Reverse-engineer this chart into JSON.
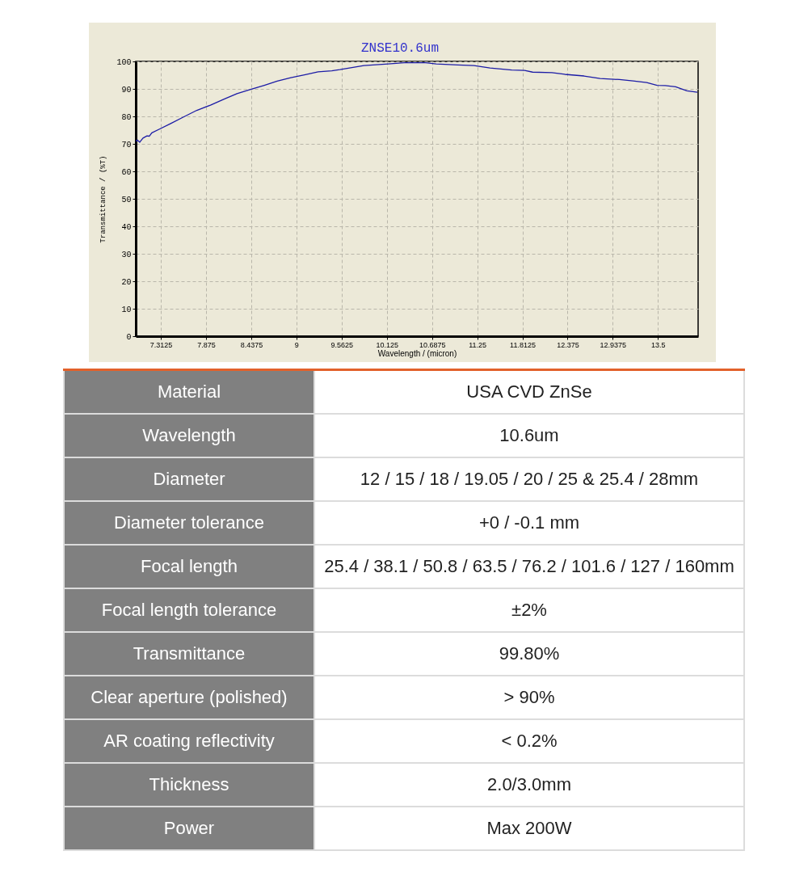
{
  "chart_data": [
    {
      "type": "line",
      "title": "ZNSE10.6um",
      "xlabel": "Wavelength / (micron)",
      "ylabel": "Transmittance / (%T)",
      "x": [
        7.0,
        7.02,
        7.05,
        7.09,
        7.14,
        7.17,
        7.2,
        7.29,
        7.43,
        7.59,
        7.76,
        7.93,
        8.1,
        8.26,
        8.43,
        8.6,
        8.76,
        8.93,
        9.1,
        9.27,
        9.44,
        9.54,
        9.84,
        10.14,
        10.34,
        10.61,
        10.74,
        11.01,
        11.21,
        11.41,
        11.68,
        11.84,
        11.94,
        12.18,
        12.34,
        12.58,
        12.78,
        13.02,
        13.19,
        13.36,
        13.49,
        13.59,
        13.72,
        13.86,
        13.99
      ],
      "series": [
        {
          "color": "#1c1ca6",
          "values": [
            70.9,
            71.4,
            70.6,
            72.1,
            72.9,
            72.8,
            74.0,
            75.3,
            77.3,
            79.7,
            82.2,
            84.1,
            86.3,
            88.3,
            89.8,
            91.3,
            92.8,
            94.1,
            95.1,
            96.2,
            96.6,
            97.0,
            98.5,
            99.1,
            99.5,
            99.5,
            99.1,
            98.7,
            98.5,
            97.6,
            96.9,
            96.7,
            96.1,
            95.9,
            95.3,
            94.7,
            93.8,
            93.4,
            92.9,
            92.3,
            91.3,
            91.2,
            90.8,
            89.3,
            88.8
          ]
        }
      ],
      "xlim": [
        7,
        14
      ],
      "ylim": [
        0,
        100
      ],
      "xticks": [
        7.3125,
        7.875,
        8.4375,
        9,
        9.5625,
        10.125,
        10.6875,
        11.25,
        11.8125,
        12.375,
        12.9375,
        13.5
      ],
      "yticks": [
        0,
        10,
        20,
        30,
        40,
        50,
        60,
        70,
        80,
        90,
        100
      ],
      "grid": true
    },
    {
      "type": "other",
      "annotations": [
        "Material",
        "USA CVD ZnSe",
        "Wavelength",
        "10.6um",
        "Diameter",
        "12 / 15 / 18 / 19.05 / 20 / 25 & 25.4 / 28mm",
        "Diameter tolerance",
        "+0 / -0.1 mm",
        "Focal length",
        "25.4 / 38.1 / 50.8 / 63.5 / 76.2 / 101.6 / 127 / 160mm",
        "Focal length tolerance",
        "±2%",
        "Transmittance",
        "99.80%",
        "Clear aperture (polished)",
        "> 90%",
        "AR coating reflectivity",
        "< 0.2%",
        "Thickness",
        "2.0/3.0mm",
        "Power",
        "Max 200W"
      ]
    }
  ]
}
